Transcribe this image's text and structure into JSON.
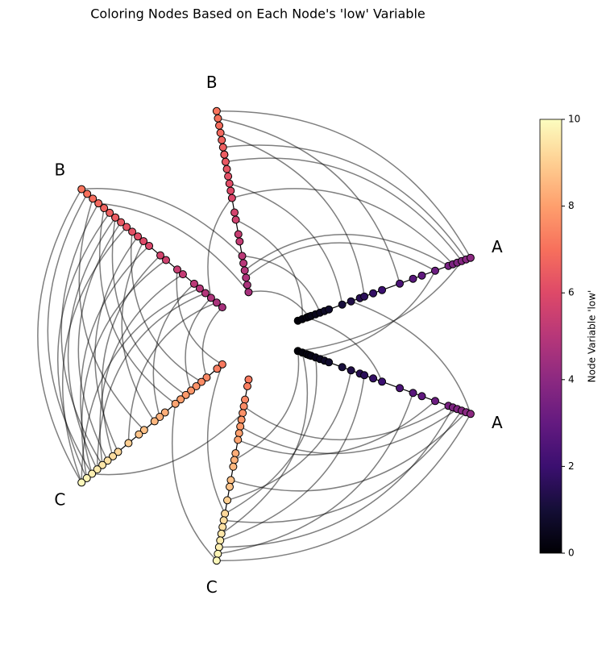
{
  "chart_data": {
    "type": "hive",
    "title": "Coloring Nodes Based on Each Node's 'low' Variable",
    "groups": [
      {
        "name": "A",
        "values": [
          0.1,
          0.2,
          0.3,
          0.35,
          0.4,
          0.5,
          0.6,
          0.7,
          0.8,
          1.1,
          1.3,
          1.5,
          1.6,
          1.8,
          2.0,
          2.4,
          2.7,
          2.9,
          3.2,
          3.5,
          3.6,
          3.7,
          3.8,
          3.9,
          4.0
        ]
      },
      {
        "name": "B",
        "values": [
          4.6,
          4.7,
          4.8,
          4.9,
          5.0,
          5.1,
          5.3,
          5.4,
          5.6,
          5.7,
          5.9,
          6.0,
          6.1,
          6.2,
          6.3,
          6.4,
          6.5,
          6.5,
          6.6,
          6.7,
          6.8,
          6.9,
          7.0,
          7.1
        ]
      },
      {
        "name": "C",
        "values": [
          7.2,
          7.3,
          7.5,
          7.6,
          7.7,
          7.8,
          7.9,
          8.0,
          8.1,
          8.3,
          8.4,
          8.5,
          8.7,
          8.8,
          9.0,
          9.2,
          9.3,
          9.4,
          9.5,
          9.6,
          9.7,
          9.8,
          9.9
        ]
      }
    ],
    "edges": [
      [
        0,
        24,
        1,
        23
      ],
      [
        0,
        20,
        1,
        10
      ],
      [
        0,
        18,
        1,
        2
      ],
      [
        0,
        22,
        1,
        15
      ],
      [
        0,
        12,
        1,
        20
      ],
      [
        0,
        3,
        1,
        0
      ],
      [
        0,
        6,
        1,
        5
      ],
      [
        0,
        15,
        1,
        22
      ],
      [
        0,
        23,
        1,
        18
      ],
      [
        0,
        9,
        1,
        12
      ],
      [
        0,
        1,
        1,
        8
      ],
      [
        0,
        19,
        1,
        3
      ],
      [
        1,
        23,
        2,
        22
      ],
      [
        1,
        22,
        2,
        20
      ],
      [
        1,
        20,
        2,
        18
      ],
      [
        1,
        18,
        2,
        21
      ],
      [
        1,
        16,
        2,
        19
      ],
      [
        1,
        15,
        2,
        17
      ],
      [
        1,
        14,
        2,
        22
      ],
      [
        1,
        12,
        2,
        15
      ],
      [
        1,
        10,
        2,
        20
      ],
      [
        1,
        9,
        2,
        16
      ],
      [
        1,
        8,
        2,
        21
      ],
      [
        1,
        6,
        2,
        18
      ],
      [
        1,
        5,
        2,
        10
      ],
      [
        1,
        4,
        2,
        22
      ],
      [
        1,
        3,
        2,
        19
      ],
      [
        1,
        2,
        2,
        5
      ],
      [
        1,
        1,
        2,
        14
      ],
      [
        1,
        0,
        2,
        2
      ],
      [
        1,
        19,
        2,
        8
      ],
      [
        1,
        21,
        2,
        12
      ],
      [
        1,
        17,
        2,
        6
      ],
      [
        1,
        13,
        2,
        3
      ],
      [
        1,
        11,
        2,
        11
      ],
      [
        1,
        7,
        2,
        0
      ],
      [
        2,
        22,
        0,
        24
      ],
      [
        2,
        20,
        0,
        20
      ],
      [
        2,
        18,
        0,
        1
      ],
      [
        2,
        16,
        0,
        22
      ],
      [
        2,
        14,
        0,
        10
      ],
      [
        2,
        12,
        0,
        23
      ],
      [
        2,
        10,
        0,
        0
      ],
      [
        2,
        8,
        0,
        18
      ],
      [
        2,
        6,
        0,
        21
      ],
      [
        2,
        21,
        0,
        16
      ],
      [
        2,
        19,
        0,
        12
      ],
      [
        2,
        3,
        0,
        19
      ],
      [
        2,
        15,
        0,
        5
      ],
      [
        0,
        0,
        0,
        22
      ],
      [
        0,
        5,
        0,
        18
      ],
      [
        0,
        24,
        0,
        10
      ],
      [
        0,
        14,
        0,
        2
      ],
      [
        1,
        0,
        1,
        20
      ],
      [
        1,
        5,
        1,
        23
      ],
      [
        1,
        10,
        1,
        2
      ],
      [
        2,
        0,
        2,
        15
      ],
      [
        2,
        8,
        2,
        22
      ],
      [
        2,
        20,
        2,
        4
      ]
    ],
    "colormap": "magma",
    "clim": [
      0,
      10
    ],
    "colorbar_ticks": [
      0,
      2,
      4,
      6,
      8,
      10
    ],
    "colorbar_label": "Node Variable 'low'"
  }
}
